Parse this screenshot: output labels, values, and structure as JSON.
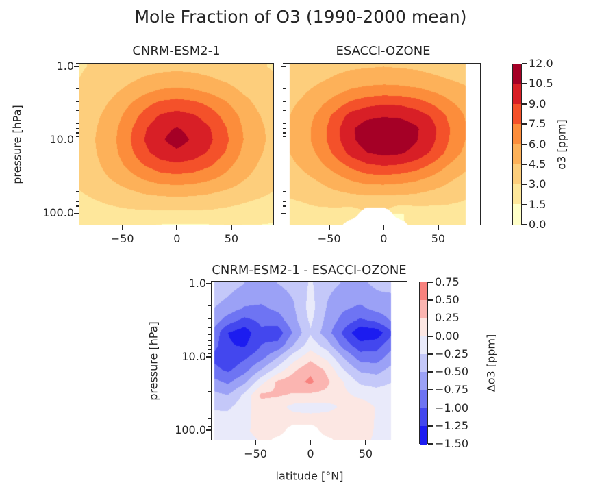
{
  "figure": {
    "title": "Mole Fraction of O3 (1990-2000 mean)",
    "background": "#ffffff",
    "text_color": "#262626"
  },
  "chart_data": [
    {
      "id": "cnrm",
      "type": "filled_contour",
      "title": "CNRM-ESM2-1",
      "ylabel": "pressure [hPa]",
      "yscale": "log",
      "xlim": [
        -90,
        89
      ],
      "ylim": [
        0.89,
        146
      ],
      "lat_range": [
        -95,
        95
      ],
      "xticks": [
        {
          "v": -50,
          "label": "−50"
        },
        {
          "v": 0,
          "label": "0"
        },
        {
          "v": 50,
          "label": "50"
        }
      ],
      "yticks": [
        {
          "v": 1,
          "label": "1.0"
        },
        {
          "v": 10,
          "label": "10.0"
        },
        {
          "v": 100,
          "label": "100.0"
        }
      ],
      "levels": {
        "min": 0,
        "step": 1.5,
        "n": 8
      },
      "colorbar": 0,
      "grid": {
        "lats": [
          -90,
          -75,
          -60,
          -45,
          -30,
          -15,
          0,
          15,
          30,
          45,
          60,
          75,
          90
        ],
        "pressures": [
          1,
          1.5,
          2.2,
          3.2,
          4.7,
          7,
          10,
          15,
          22,
          33,
          48,
          70,
          103,
          150
        ],
        "values": [
          [
            2.9,
            3.1,
            3.3,
            3.6,
            3.9,
            4.1,
            4.2,
            4.1,
            3.9,
            3.7,
            3.4,
            3.1,
            2.9
          ],
          [
            3.0,
            3.3,
            3.7,
            4.2,
            4.7,
            5.0,
            5.1,
            5.0,
            4.7,
            4.3,
            3.8,
            3.4,
            3.1
          ],
          [
            3.2,
            3.6,
            4.2,
            4.9,
            5.7,
            6.3,
            6.5,
            6.3,
            5.8,
            5.2,
            4.4,
            3.8,
            3.3
          ],
          [
            3.4,
            3.9,
            4.7,
            5.8,
            7.0,
            7.9,
            8.2,
            7.9,
            7.2,
            6.2,
            5.1,
            4.2,
            3.6
          ],
          [
            3.6,
            4.2,
            5.1,
            6.5,
            8.0,
            9.2,
            9.6,
            9.2,
            8.3,
            7.0,
            5.7,
            4.6,
            3.8
          ],
          [
            3.7,
            4.4,
            5.4,
            7.0,
            8.8,
            10.1,
            10.6,
            10.1,
            9.1,
            7.6,
            6.0,
            4.8,
            4.0
          ],
          [
            3.8,
            4.5,
            5.5,
            7.2,
            9.0,
            10.3,
            11.1,
            10.3,
            9.3,
            7.8,
            6.1,
            4.9,
            4.0
          ],
          [
            3.8,
            4.4,
            5.4,
            6.9,
            8.6,
            9.7,
            10.2,
            9.7,
            8.8,
            7.4,
            5.8,
            4.7,
            3.9
          ],
          [
            3.6,
            4.2,
            5.1,
            6.3,
            7.5,
            8.4,
            8.7,
            8.4,
            7.7,
            6.5,
            5.3,
            4.4,
            3.7
          ],
          [
            3.3,
            3.9,
            4.6,
            5.4,
            6.2,
            6.8,
            7.0,
            6.8,
            6.3,
            5.6,
            4.7,
            4.0,
            3.4
          ],
          [
            3.0,
            3.4,
            3.9,
            4.4,
            4.9,
            5.2,
            5.3,
            5.2,
            4.9,
            4.5,
            4.0,
            3.5,
            3.0
          ],
          [
            2.6,
            2.9,
            3.2,
            3.5,
            3.7,
            3.8,
            3.9,
            3.8,
            3.7,
            3.4,
            3.1,
            2.8,
            2.5
          ],
          [
            2.2,
            2.4,
            2.5,
            2.6,
            2.6,
            2.6,
            2.6,
            2.6,
            2.6,
            2.5,
            2.4,
            2.2,
            2.0
          ],
          [
            2.0,
            2.1,
            2.1,
            1.9,
            1.6,
            1.3,
            1.2,
            1.2,
            1.3,
            1.4,
            1.4,
            1.4,
            1.3
          ]
        ]
      }
    },
    {
      "id": "esacci",
      "type": "filled_contour",
      "title": "ESACCI-OZONE",
      "ylabel": "",
      "yscale": "log",
      "xlim": [
        -90,
        89
      ],
      "ylim": [
        0.89,
        146
      ],
      "lat_range": [
        -86,
        75
      ],
      "xticks": [
        {
          "v": -50,
          "label": "−50"
        },
        {
          "v": 0,
          "label": "0"
        },
        {
          "v": 50,
          "label": "50"
        }
      ],
      "yticks": [
        {
          "v": 1,
          "label": "1.0"
        },
        {
          "v": 10,
          "label": "10.0"
        },
        {
          "v": 100,
          "label": "100.0"
        }
      ],
      "levels": {
        "min": 0,
        "step": 1.5,
        "n": 8
      },
      "colorbar": 0,
      "grid": {
        "lats": [
          -90,
          -75,
          -60,
          -45,
          -30,
          -15,
          0,
          15,
          30,
          45,
          60,
          75,
          90
        ],
        "pressures": [
          1,
          1.5,
          2.2,
          3.2,
          4.7,
          7,
          10,
          15,
          22,
          33,
          48,
          70,
          103,
          150
        ],
        "values": [
          [
            3.4,
            3.6,
            3.8,
            4.1,
            4.3,
            4.4,
            4.5,
            4.4,
            4.3,
            4.1,
            3.9,
            3.7,
            3.6
          ],
          [
            3.6,
            3.9,
            4.3,
            4.7,
            5.1,
            5.3,
            5.4,
            5.3,
            5.1,
            4.8,
            4.5,
            4.2,
            4.0
          ],
          [
            3.9,
            4.3,
            4.9,
            5.6,
            6.3,
            6.7,
            6.9,
            6.8,
            6.5,
            6.0,
            5.4,
            4.8,
            4.4
          ],
          [
            4.1,
            4.7,
            5.6,
            6.7,
            7.9,
            8.6,
            8.9,
            8.8,
            8.3,
            7.4,
            6.3,
            5.4,
            4.8
          ],
          [
            4.3,
            5.1,
            6.3,
            7.9,
            9.6,
            10.2,
            10.4,
            10.3,
            9.8,
            8.8,
            7.2,
            5.9,
            5.1
          ],
          [
            4.4,
            5.3,
            6.6,
            8.4,
            10.3,
            11.2,
            11.5,
            11.4,
            10.7,
            9.4,
            7.6,
            6.1,
            5.3
          ],
          [
            4.4,
            5.3,
            6.6,
            8.4,
            10.2,
            11.3,
            11.6,
            11.4,
            10.6,
            9.3,
            7.5,
            6.0,
            5.2
          ],
          [
            4.3,
            5.1,
            6.2,
            7.8,
            9.5,
            10.5,
            10.9,
            10.7,
            10.0,
            8.7,
            7.0,
            5.6,
            4.9
          ],
          [
            4.0,
            4.7,
            5.6,
            6.7,
            7.9,
            8.8,
            9.1,
            8.9,
            8.3,
            7.2,
            5.9,
            4.9,
            4.2
          ],
          [
            3.6,
            4.1,
            4.7,
            5.5,
            6.3,
            6.9,
            7.0,
            6.8,
            6.4,
            5.7,
            4.8,
            4.1,
            3.6
          ],
          [
            3.2,
            3.6,
            4.0,
            4.5,
            4.9,
            5.2,
            5.2,
            5.1,
            4.9,
            4.5,
            4.0,
            3.5,
            3.1
          ],
          [
            2.8,
            3.0,
            3.3,
            3.5,
            3.6,
            3.6,
            3.6,
            3.6,
            3.6,
            3.4,
            3.2,
            2.9,
            2.6
          ],
          [
            2.4,
            2.5,
            2.5,
            2.4,
            2.1,
            null,
            null,
            1.4,
            1.8,
            2.1,
            2.2,
            2.1,
            2.0
          ],
          [
            2.1,
            2.1,
            2.0,
            1.8,
            null,
            null,
            null,
            null,
            1.5,
            1.6,
            1.6,
            1.5,
            1.4
          ]
        ]
      }
    },
    {
      "id": "diff",
      "type": "filled_contour",
      "title": "CNRM-ESM2-1 - ESACCI-OZONE",
      "ylabel": "pressure [hPa]",
      "xlabel": "latitude [°N]",
      "yscale": "log",
      "xlim": [
        -90.5,
        88
      ],
      "ylim": [
        0.92,
        138
      ],
      "lat_range": [
        -87.5,
        73
      ],
      "xticks": [
        {
          "v": -50,
          "label": "−50"
        },
        {
          "v": 0,
          "label": "0"
        },
        {
          "v": 50,
          "label": "50"
        }
      ],
      "yticks": [
        {
          "v": 1,
          "label": "1.0"
        },
        {
          "v": 10,
          "label": "10.0"
        },
        {
          "v": 100,
          "label": "100.0"
        }
      ],
      "levels": {
        "min": -1.5,
        "step": 0.25,
        "n": 9
      },
      "colorbar": 1,
      "grid": {
        "lats": [
          -90,
          -75,
          -60,
          -45,
          -30,
          -15,
          0,
          15,
          30,
          45,
          60,
          75,
          90
        ],
        "pressures": [
          1,
          1.5,
          2.2,
          3.2,
          4.7,
          7,
          10,
          15,
          22,
          33,
          48,
          70,
          103,
          150
        ],
        "values": [
          [
            -0.3,
            -0.4,
            -0.5,
            -0.55,
            -0.5,
            -0.42,
            -0.22,
            -0.42,
            -0.52,
            -0.55,
            -0.45,
            -0.35,
            -0.3
          ],
          [
            -0.38,
            -0.5,
            -0.62,
            -0.66,
            -0.6,
            -0.48,
            -0.18,
            -0.48,
            -0.62,
            -0.66,
            -0.55,
            -0.55,
            -0.45
          ],
          [
            -0.48,
            -0.62,
            -0.78,
            -0.8,
            -0.7,
            -0.52,
            -0.15,
            -0.52,
            -0.72,
            -0.8,
            -0.68,
            -0.6,
            -0.4
          ],
          [
            -0.58,
            -0.88,
            -1.08,
            -0.95,
            -0.88,
            -0.58,
            -0.2,
            -0.58,
            -0.85,
            -1.05,
            -0.95,
            -0.7,
            -0.35
          ],
          [
            -0.75,
            -1.25,
            -1.4,
            -1.05,
            -1.15,
            -0.7,
            -0.28,
            -0.65,
            -1.05,
            -1.45,
            -1.4,
            -1.0,
            -0.45
          ],
          [
            -0.85,
            -1.22,
            -1.28,
            -1.0,
            -0.92,
            -0.48,
            -0.1,
            -0.38,
            -0.85,
            -1.15,
            -1.1,
            -0.8,
            -0.38
          ],
          [
            -1.05,
            -1.2,
            -1.05,
            -0.85,
            -0.52,
            -0.12,
            0.15,
            -0.08,
            -0.52,
            -0.88,
            -0.9,
            -0.6,
            -0.3
          ],
          [
            -0.9,
            -1.05,
            -0.85,
            -0.5,
            -0.15,
            0.2,
            0.45,
            0.2,
            -0.25,
            -0.55,
            -0.6,
            -0.4,
            -0.2
          ],
          [
            -0.65,
            -0.8,
            -0.55,
            -0.1,
            0.3,
            0.42,
            0.55,
            0.3,
            0.0,
            -0.3,
            -0.35,
            -0.25,
            -0.1
          ],
          [
            -0.42,
            -0.5,
            -0.2,
            0.3,
            0.28,
            0.22,
            0.2,
            0.18,
            0.05,
            -0.05,
            -0.12,
            -0.1,
            -0.05
          ],
          [
            -0.28,
            -0.3,
            -0.1,
            0.15,
            0.1,
            -0.08,
            -0.1,
            -0.08,
            0.05,
            0.12,
            -0.02,
            -0.05,
            -0.02
          ],
          [
            -0.18,
            -0.15,
            -0.05,
            0.08,
            0.12,
            0.1,
            0.08,
            0.1,
            0.12,
            0.12,
            -0.02,
            -0.02,
            -0.02
          ],
          [
            -0.1,
            -0.08,
            -0.02,
            0.04,
            0.08,
            null,
            null,
            0.06,
            0.06,
            0.08,
            -0.02,
            -0.03,
            -0.03
          ],
          [
            -0.05,
            -0.05,
            -0.05,
            0.0,
            null,
            null,
            null,
            null,
            0.05,
            0.04,
            -0.03,
            -0.03,
            -0.03
          ]
        ]
      }
    }
  ],
  "colorbars": [
    {
      "id": "o3",
      "label": "o3 [ppm]",
      "colors": [
        "#ffffc8",
        "#fee79b",
        "#fdce7c",
        "#fdb159",
        "#fc8d3b",
        "#f4512a",
        "#d81f26",
        "#a50026"
      ],
      "tick_labels": [
        "12.0",
        "10.5",
        "9.0",
        "7.5",
        "6.0",
        "4.5",
        "3.0",
        "1.5",
        "0.0"
      ]
    },
    {
      "id": "delta-o3",
      "label": "Δo3 [ppm]",
      "colors": [
        "#1c1cf0",
        "#4347ee",
        "#6e74f3",
        "#9ba1f6",
        "#c4c8f9",
        "#e9eafa",
        "#fce7e3",
        "#fbb5b1",
        "#f8827e"
      ],
      "tick_labels": [
        "0.75",
        "0.50",
        "0.25",
        "0.00",
        "−0.25",
        "−0.50",
        "−0.75",
        "−1.00",
        "−1.25",
        "−1.50"
      ]
    }
  ]
}
